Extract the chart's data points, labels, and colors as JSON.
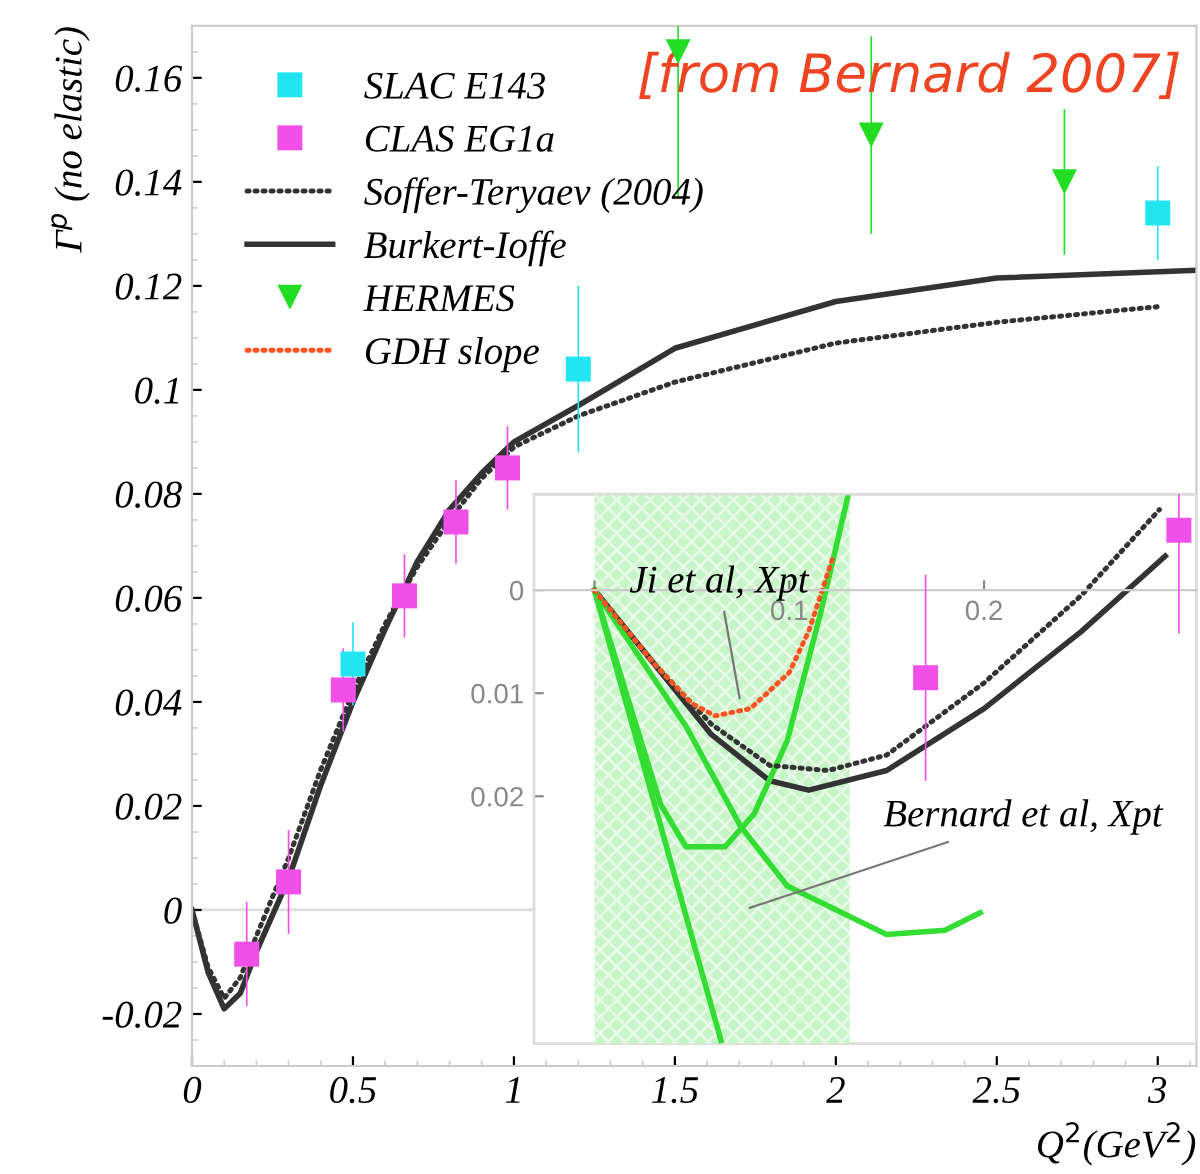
{
  "chart_data": [
    {
      "type": "line",
      "xlabel": "Q$^{2}$(GeV$^{2}$)",
      "ylabel": "Γ$^{p}$ (no elastic)",
      "xlim": [
        0,
        3.12
      ],
      "ylim": [
        -0.03,
        0.17
      ],
      "xticks": [
        0,
        0.5,
        1,
        1.5,
        2,
        2.5,
        3
      ],
      "yticks": [
        -0.02,
        0,
        0.02,
        0.04,
        0.06,
        0.08,
        0.1,
        0.12,
        0.14,
        0.16
      ],
      "legend": "top left",
      "grid": false,
      "ref_lines": [
        {
          "axis": "y",
          "value": 0,
          "color": "#dddddd"
        }
      ],
      "annotations": [
        "[from Bernard 2007]"
      ],
      "series": [
        {
          "name": "SLAC E143",
          "type": "scatter",
          "marker": "square",
          "color": "#22e5f0",
          "x": [
            0.5,
            1.2,
            3.0
          ],
          "values": [
            0.0473,
            0.104,
            0.134
          ],
          "errors": [
            0.008,
            0.016,
            0.009
          ]
        },
        {
          "name": "CLAS EG1a",
          "type": "scatter",
          "marker": "square",
          "color": "#f050e8",
          "x": [
            0.17,
            0.3,
            0.47,
            0.66,
            0.82,
            0.98
          ],
          "values": [
            -0.0085,
            0.0054,
            0.0423,
            0.0604,
            0.0746,
            0.085
          ],
          "errors": [
            0.01,
            0.01,
            0.008,
            0.008,
            0.008,
            0.008
          ]
        },
        {
          "name": "Soffer-Teryaev (2004)",
          "line_style": "dotted",
          "color": "#333333",
          "x": [
            0,
            0.05,
            0.1,
            0.15,
            0.2,
            0.3,
            0.4,
            0.5,
            0.6,
            0.7,
            0.8,
            0.9,
            1.0,
            1.2,
            1.5,
            2.0,
            2.5,
            3.0
          ],
          "values": [
            0,
            -0.011,
            -0.017,
            -0.013,
            -0.005,
            0.01,
            0.027,
            0.042,
            0.055,
            0.066,
            0.075,
            0.083,
            0.089,
            0.095,
            0.1015,
            0.109,
            0.113,
            0.116
          ]
        },
        {
          "name": "Burkert-Ioffe",
          "line_style": "solid",
          "color": "#333333",
          "x": [
            0,
            0.05,
            0.1,
            0.15,
            0.2,
            0.3,
            0.4,
            0.5,
            0.6,
            0.7,
            0.8,
            0.9,
            1.0,
            1.2,
            1.5,
            2.0,
            2.5,
            3.12
          ],
          "values": [
            0,
            -0.012,
            -0.019,
            -0.016,
            -0.008,
            0.006,
            0.024,
            0.04,
            0.054,
            0.067,
            0.077,
            0.084,
            0.09,
            0.097,
            0.108,
            0.117,
            0.1215,
            0.123
          ]
        },
        {
          "name": "HERMES",
          "type": "scatter",
          "marker": "triangle_down",
          "color": "#22dd22",
          "x": [
            1.51,
            2.11,
            2.71
          ],
          "values": [
            0.165,
            0.149,
            0.14
          ],
          "errors": [
            [
              0.137,
              0.17
            ],
            0.019,
            0.014
          ]
        }
      ]
    },
    {
      "type": "line",
      "xlim": [
        -0.031,
        0.309
      ],
      "ylim": [
        0.044,
        -0.0093
      ],
      "xticks": [
        {
          "value": 0,
          "label": null
        },
        0.1,
        0.2
      ],
      "yticks": [
        0,
        0.01,
        0.02
      ],
      "bands": [
        {
          "axis": "x",
          "from": 0,
          "to": 0.131,
          "color": "#c8f5c8"
        }
      ],
      "annotations": [
        {
          "text": "Ji et al, Xpt",
          "x": 0.075,
          "y": 0.011
        },
        {
          "text": "Bernard et al, Xpt",
          "x": 0.077,
          "y": 0.031
        }
      ],
      "series": [
        {
          "type": "scatter",
          "marker": "square",
          "color": "#f050e8",
          "x": [
            0.17,
            0.3
          ],
          "values": [
            0.0085,
            -0.0058
          ],
          "errors": [
            0.01,
            0.01
          ]
        },
        {
          "line_style": "dotted",
          "color": "#333333",
          "x": [
            0,
            0.03,
            0.06,
            0.09,
            0.12,
            0.15,
            0.2,
            0.25,
            0.29
          ],
          "values": [
            0,
            0.007,
            0.013,
            0.017,
            0.0175,
            0.016,
            0.009,
            0.0005,
            -0.0078
          ]
        },
        {
          "line_style": "solid",
          "color": "#333333",
          "x": [
            0,
            0.03,
            0.06,
            0.09,
            0.11,
            0.15,
            0.2,
            0.25,
            0.293
          ],
          "values": [
            0,
            0.007,
            0.014,
            0.0185,
            0.0194,
            0.0175,
            0.0115,
            0.004,
            -0.0033
          ]
        },
        {
          "name": "GDH slope",
          "line_style": "dotted",
          "color": "#ff5522",
          "x": [
            0,
            0.03,
            0.05,
            0.062,
            0.08,
            0.1,
            0.11,
            0.123
          ],
          "values": [
            0,
            0.007,
            0.011,
            0.0122,
            0.0115,
            0.008,
            0.004,
            -0.0035
          ]
        },
        {
          "line_style": "solid",
          "color": "#33dd33",
          "x": [
            0,
            0.034,
            0.047,
            0.067,
            0.082,
            0.099,
            0.116,
            0.13
          ],
          "values": [
            0,
            0.0208,
            0.0249,
            0.0249,
            0.0217,
            0.0146,
            0.0023,
            -0.009
          ]
        },
        {
          "line_style": "solid",
          "color": "#33dd33",
          "x": [
            0,
            0.047,
            0.075,
            0.099,
            0.15,
            0.18,
            0.198
          ],
          "values": [
            0,
            0.0132,
            0.0229,
            0.0287,
            0.0334,
            0.033,
            0.0313
          ]
        },
        {
          "line_style": "solid",
          "color": "#33dd33",
          "x": [
            0,
            0.065
          ],
          "values": [
            0,
            0.0437
          ]
        }
      ]
    }
  ]
}
